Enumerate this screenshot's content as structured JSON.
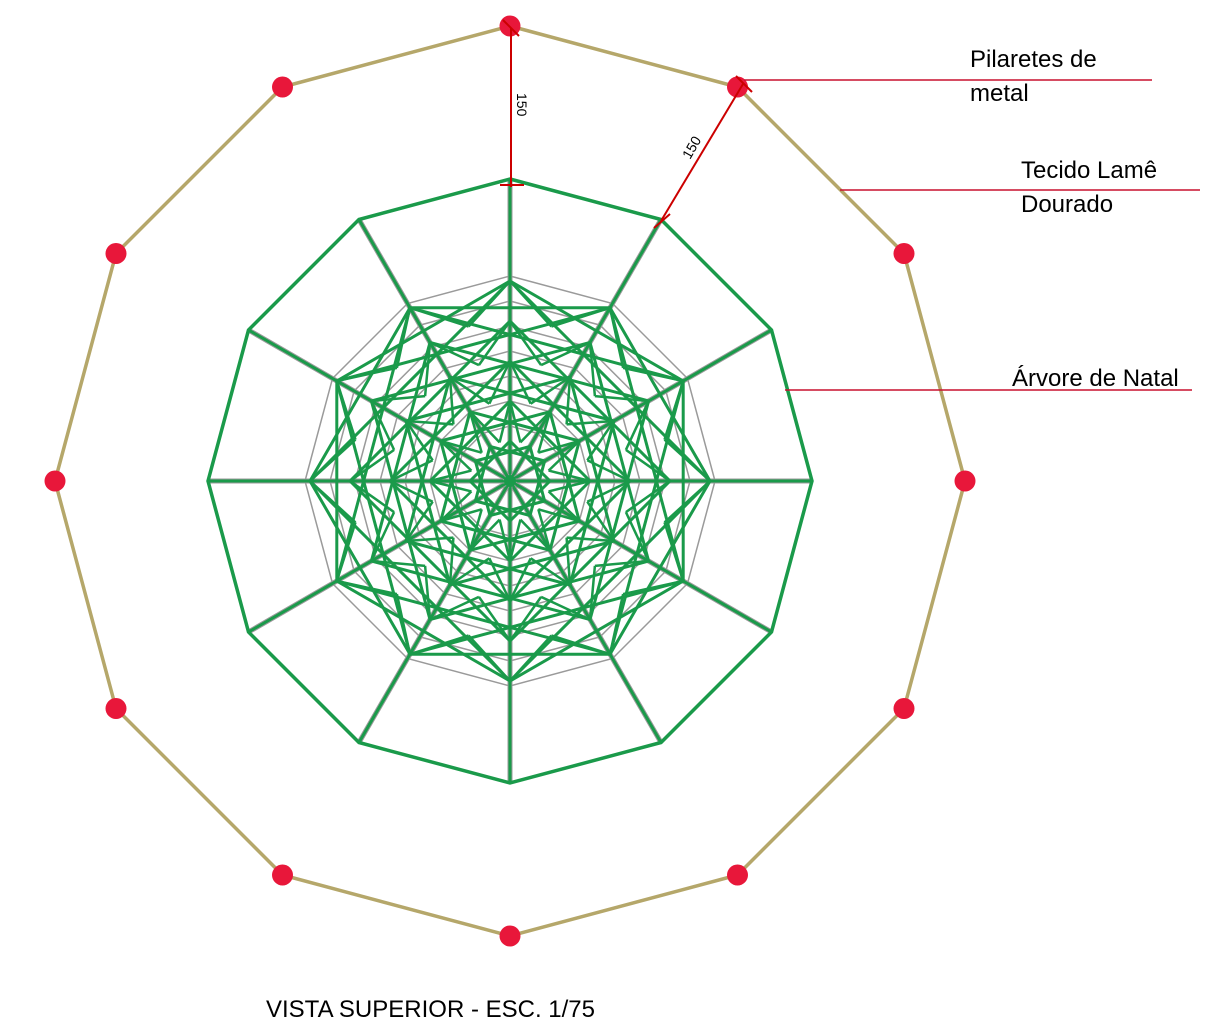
{
  "labels": {
    "pilaretes_line1": "Pilaretes de",
    "pilaretes_line2": "metal",
    "tecido_line1": "Tecido Lamê",
    "tecido_line2": "Dourado",
    "arvore": "Árvore de Natal"
  },
  "dimensions": {
    "vertical": "150",
    "diagonal": "150"
  },
  "caption": "VISTA SUPERIOR - ESC. 1/75",
  "colors": {
    "fabric": "#b5a76a",
    "posts": "#e8173a",
    "tree": "#1a9a4a",
    "tree_shadow": "#9a9a9a",
    "leader": "#c8102e",
    "dimension": "#cc0000"
  }
}
